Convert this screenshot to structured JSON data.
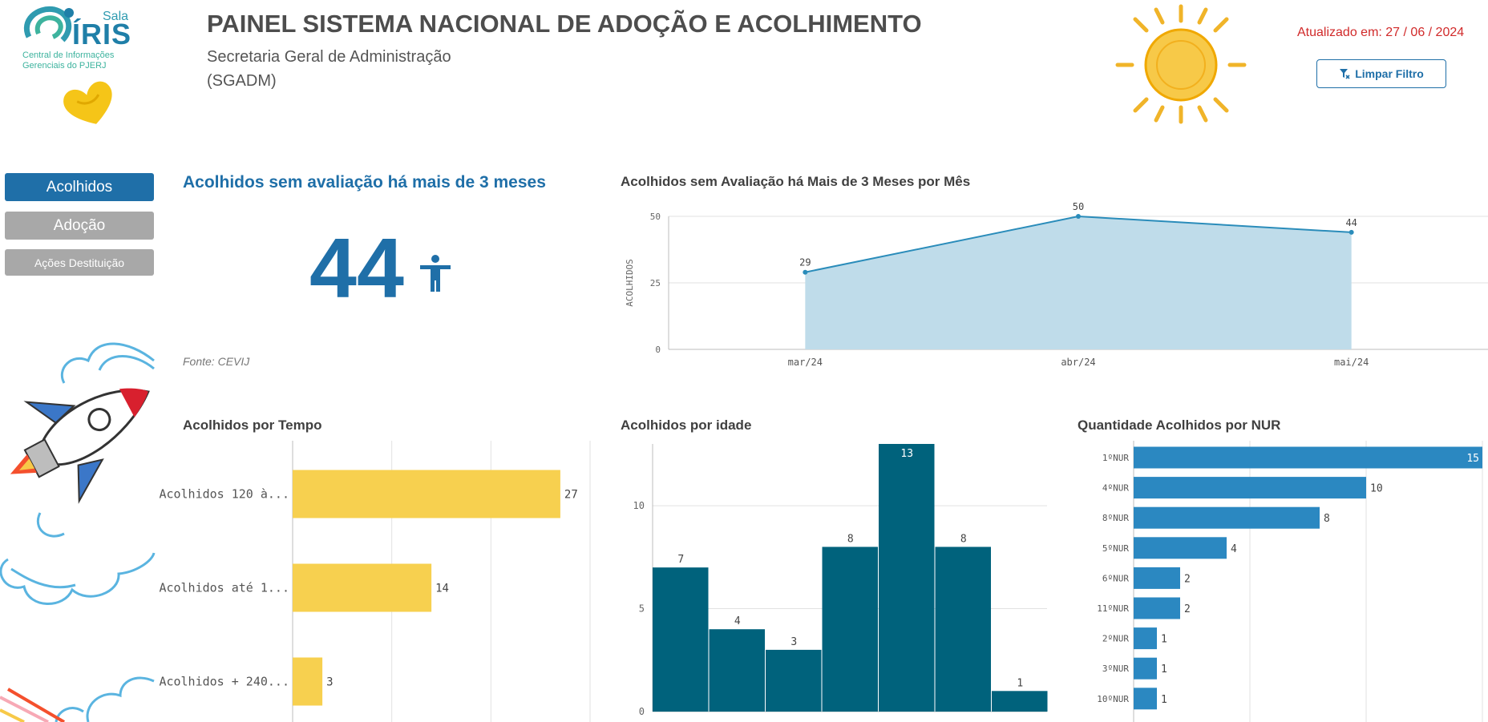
{
  "header": {
    "logo_sala": "Sala",
    "logo_iris": "ÍRIS",
    "logo_subtitle": "Central de Informações Gerenciais do PJERJ",
    "title": "PAINEL SISTEMA NACIONAL DE ADOÇÃO E ACOLHIMENTO",
    "subtitle_line1": "Secretaria Geral de Administração",
    "subtitle_line2": "(SGADM)",
    "updated": "Atualizado em: 27 / 06 / 2024",
    "clear_filter_label": "Limpar Filtro"
  },
  "nav": {
    "items": [
      {
        "label": "Acolhidos",
        "active": true
      },
      {
        "label": "Adoção",
        "active": false
      },
      {
        "label": "Ações Destituição",
        "active": false
      }
    ]
  },
  "kpi": {
    "title": "Acolhidos sem avaliação há mais de 3 meses",
    "value": "44",
    "icon": "person-icon",
    "source": "Fonte: CEVIJ"
  },
  "charts": {
    "by_month_title": "Acolhidos sem Avaliação há Mais de 3 Meses por Mês",
    "by_time_title": "Acolhidos por Tempo",
    "by_age_title": "Acolhidos por idade",
    "by_nur_title": "Quantidade Acolhidos por NUR"
  },
  "colors": {
    "primary": "#1f6fa8",
    "area_fill": "#bfdcea",
    "area_line": "#2a8cba",
    "yellow": "#f7d04f",
    "teal": "#00627c",
    "nur_blue": "#2b88c1",
    "updated_red": "#d12a2a"
  },
  "chart_data": [
    {
      "type": "area",
      "title": "Acolhidos sem Avaliação há Mais de 3 Meses por Mês",
      "ylabel": "ACOLHIDOS",
      "categories": [
        "mar/24",
        "abr/24",
        "mai/24"
      ],
      "values": [
        29,
        50,
        44
      ],
      "yticks": [
        0,
        25,
        50
      ],
      "ylim": [
        0,
        50
      ],
      "grid": true
    },
    {
      "type": "bar",
      "orientation": "horizontal",
      "title": "Acolhidos por Tempo",
      "categories": [
        "Acolhidos 120 à...",
        "Acolhidos até 1...",
        "Acolhidos + 240..."
      ],
      "values": [
        27,
        14,
        3
      ],
      "grid": true
    },
    {
      "type": "bar",
      "title": "Acolhidos por idade",
      "values": [
        7,
        4,
        3,
        8,
        13,
        8,
        1
      ],
      "yticks": [
        0,
        5,
        10
      ],
      "ylim": [
        0,
        13
      ],
      "grid": true
    },
    {
      "type": "bar",
      "orientation": "horizontal",
      "title": "Quantidade Acolhidos por NUR",
      "categories": [
        "1ºNUR",
        "4ºNUR",
        "8ºNUR",
        "5ºNUR",
        "6ºNUR",
        "11ºNUR",
        "2ºNUR",
        "3ºNUR",
        "10ºNUR"
      ],
      "values": [
        15,
        10,
        8,
        4,
        2,
        2,
        1,
        1,
        1
      ],
      "grid": true
    }
  ]
}
